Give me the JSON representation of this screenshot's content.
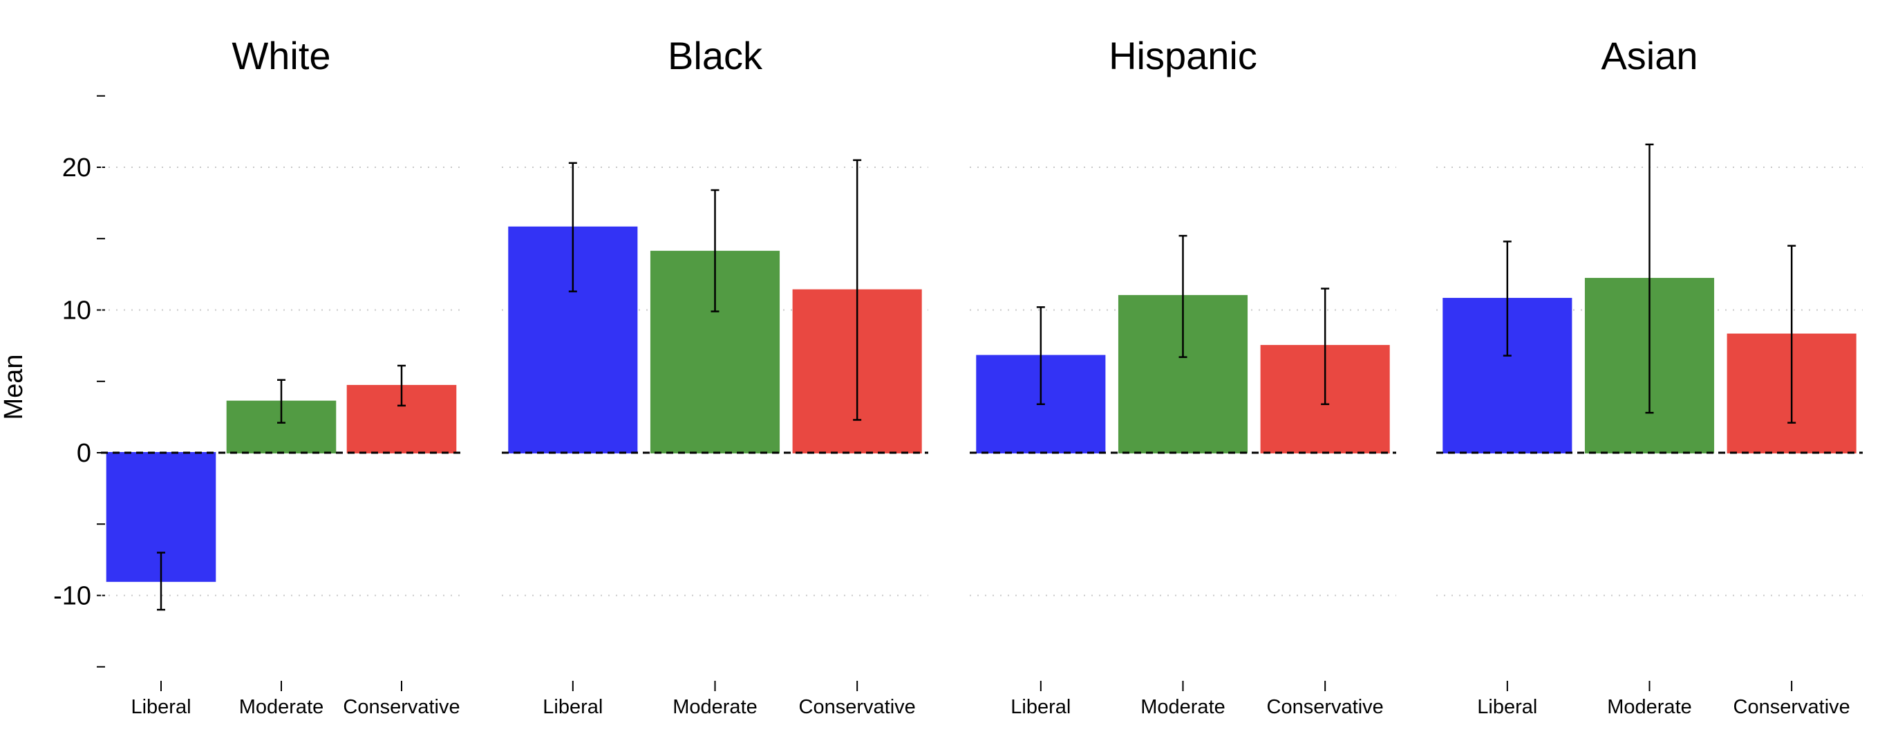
{
  "chart_data": {
    "type": "bar",
    "ylabel": "Mean",
    "ylim": [
      -16.5,
      26.5
    ],
    "yticks": [
      -10,
      0,
      10,
      20
    ],
    "ytick_labels": [
      "-10",
      "0",
      "10",
      "20"
    ],
    "minor_yticks": [
      -15,
      -5,
      5,
      15,
      25
    ],
    "categories": [
      "Liberal",
      "Moderate",
      "Conservative"
    ],
    "colors": [
      "#3333f5",
      "#529b43",
      "#e94841"
    ],
    "reference_line": 0,
    "panels": [
      {
        "title": "White",
        "values": [
          -9.0,
          3.6,
          4.7
        ],
        "err_low": [
          -11.0,
          2.1,
          3.3
        ],
        "err_high": [
          -7.0,
          5.1,
          6.1
        ]
      },
      {
        "title": "Black",
        "values": [
          15.8,
          14.1,
          11.4
        ],
        "err_low": [
          11.3,
          9.9,
          2.3
        ],
        "err_high": [
          20.3,
          18.4,
          20.5
        ]
      },
      {
        "title": "Hispanic",
        "values": [
          6.8,
          11.0,
          7.5
        ],
        "err_low": [
          3.4,
          6.7,
          3.4
        ],
        "err_high": [
          10.2,
          15.2,
          11.5
        ]
      },
      {
        "title": "Asian",
        "values": [
          10.8,
          12.2,
          8.3
        ],
        "err_low": [
          6.8,
          2.8,
          2.1
        ],
        "err_high": [
          14.8,
          21.6,
          14.5
        ]
      }
    ]
  }
}
